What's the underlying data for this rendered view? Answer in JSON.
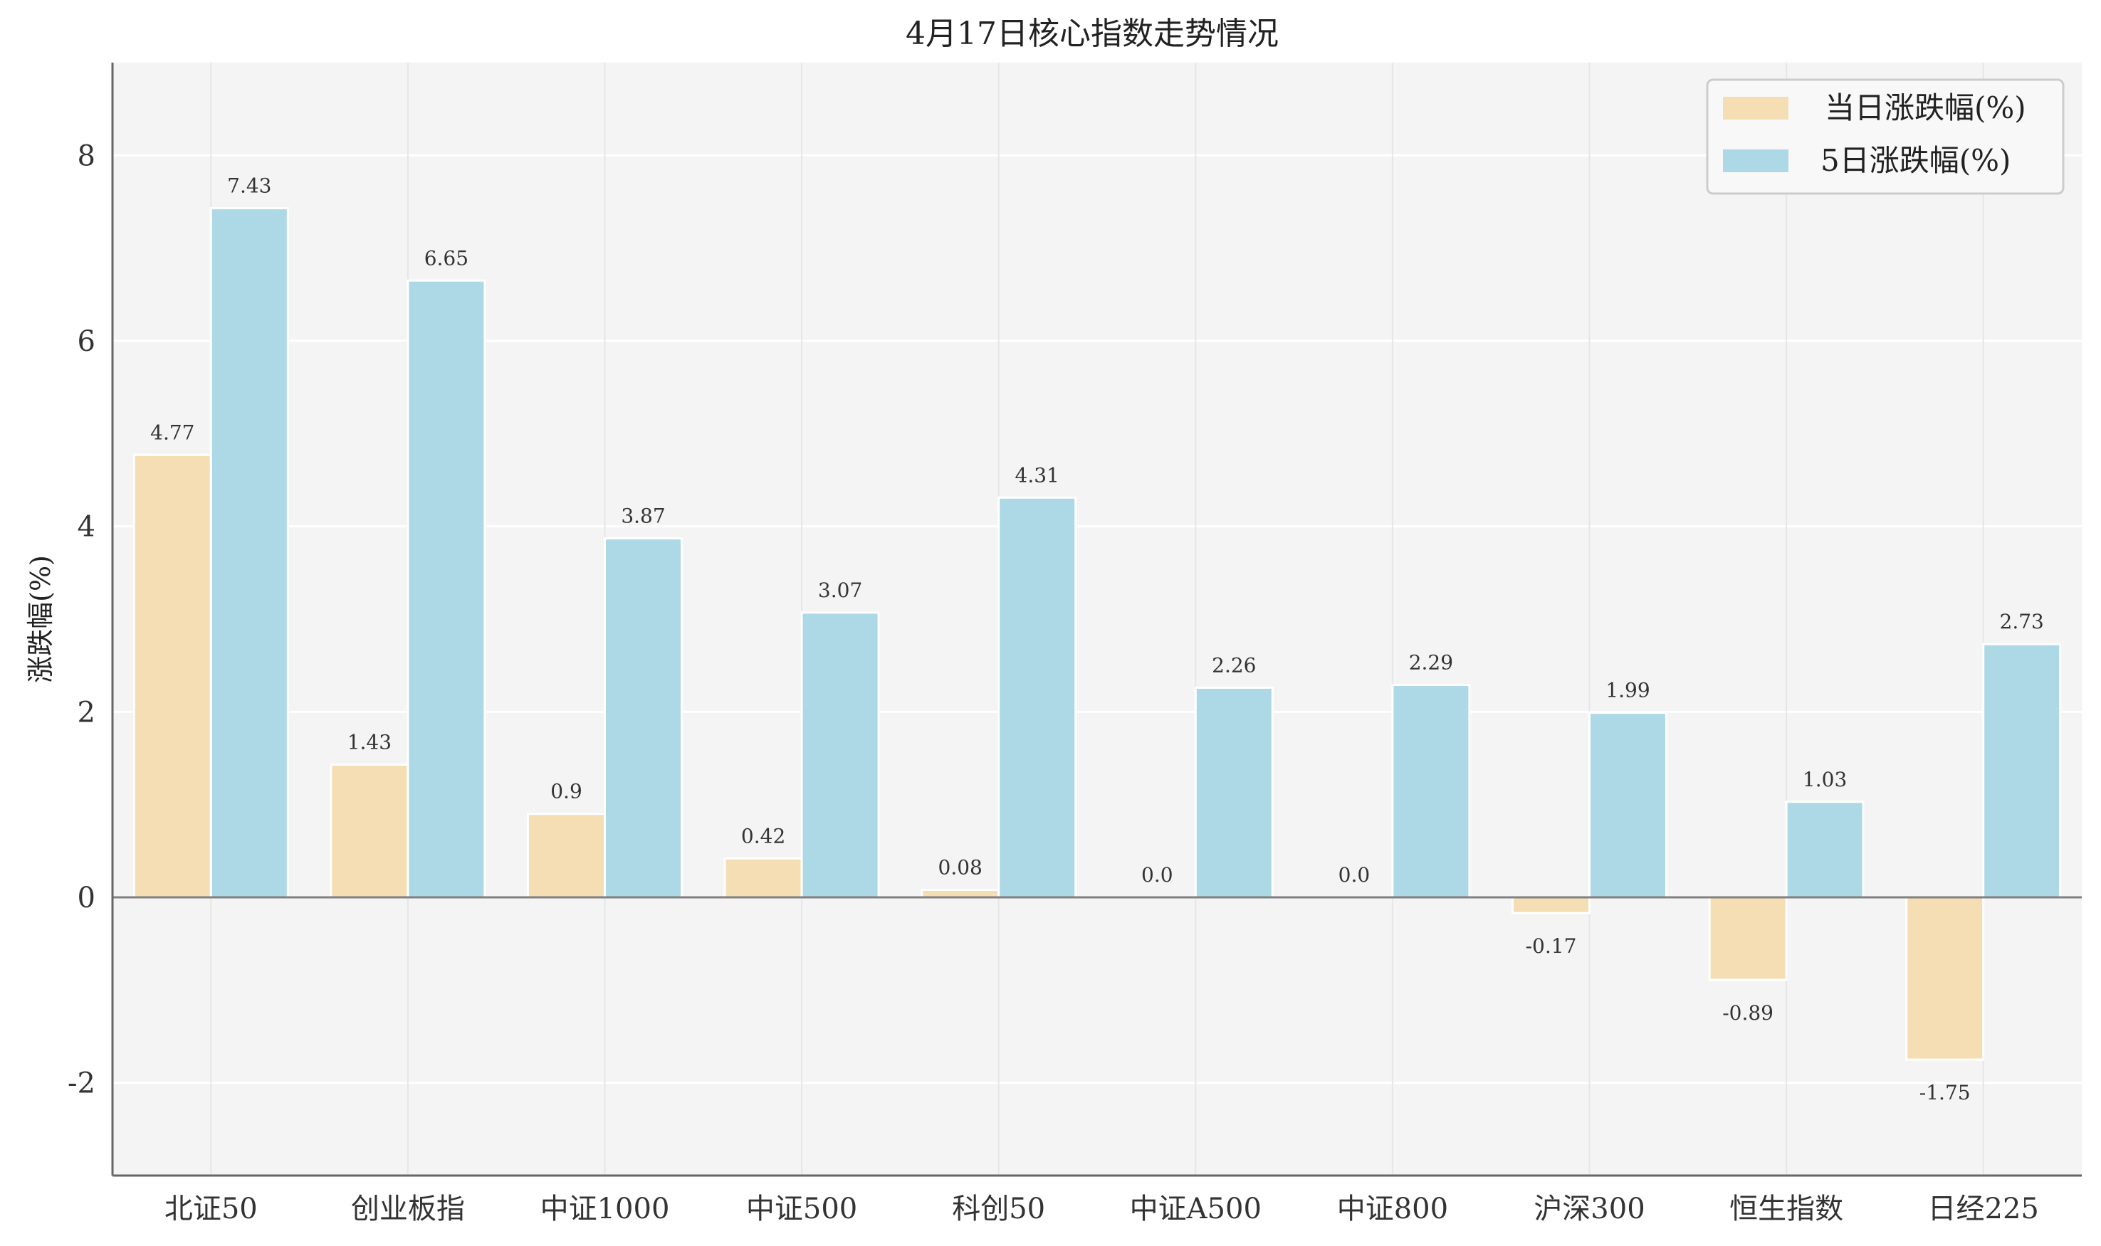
{
  "chart_data": {
    "type": "bar",
    "title": "4月17日核心指数走势情况",
    "xlabel": "",
    "ylabel": "涨跌幅(%)",
    "ylim": [
      -3,
      9
    ],
    "yticks": [
      -2,
      0,
      2,
      4,
      6,
      8
    ],
    "grid": true,
    "legend_position": "top-right",
    "categories": [
      "北证50",
      "创业板指",
      "中证1000",
      "中证500",
      "科创50",
      "中证A500",
      "中证800",
      "沪深300",
      "恒生指数",
      "日经225"
    ],
    "series": [
      {
        "name": "当日涨跌幅(%)",
        "color": "#f5deb3",
        "values": [
          4.77,
          1.43,
          0.9,
          0.42,
          0.08,
          0.0,
          0.0,
          -0.17,
          -0.89,
          -1.75
        ],
        "labels": [
          "4.77",
          "1.43",
          "0.9",
          "0.42",
          "0.08",
          "0.0",
          "0.0",
          "-0.17",
          "-0.89",
          "-1.75"
        ]
      },
      {
        "name": "5日涨跌幅(%)",
        "color": "#add8e6",
        "values": [
          7.43,
          6.65,
          3.87,
          3.07,
          4.31,
          2.26,
          2.29,
          1.99,
          1.03,
          2.73
        ],
        "labels": [
          "7.43",
          "6.65",
          "3.87",
          "3.07",
          "4.31",
          "2.26",
          "2.29",
          "1.99",
          "1.03",
          "2.73"
        ]
      }
    ],
    "colors": {
      "plot_background": "#f4f4f4",
      "grid": "#ffffff",
      "zero_line": "#808080",
      "bar_edge": "#ffffff"
    }
  }
}
